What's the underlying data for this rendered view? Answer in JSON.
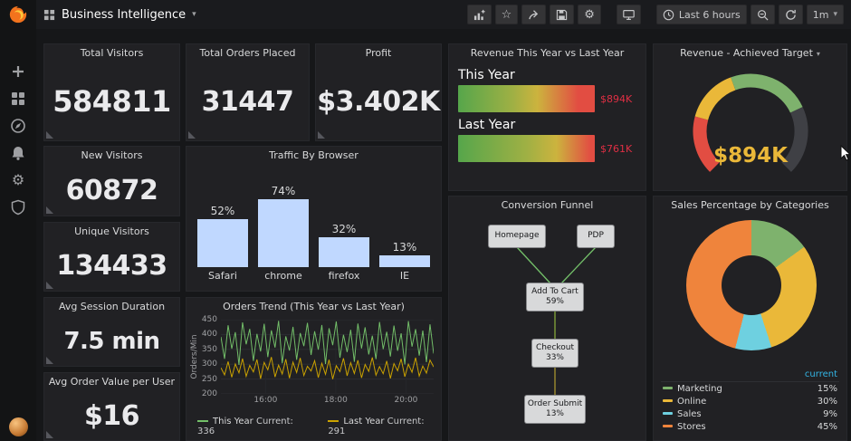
{
  "topnav": {
    "dashboard_title": "Business Intelligence",
    "time_range": "Last 6 hours",
    "refresh_interval": "1m",
    "icons": [
      "add-panel",
      "star",
      "share",
      "save",
      "settings",
      "tv-mode",
      "clock",
      "zoom-out",
      "refresh"
    ]
  },
  "sidebar": {
    "items": [
      {
        "name": "create",
        "icon": "plus-icon"
      },
      {
        "name": "dashboards",
        "icon": "grid-icon"
      },
      {
        "name": "explore",
        "icon": "compass-icon"
      },
      {
        "name": "alerting",
        "icon": "bell-icon"
      },
      {
        "name": "configuration",
        "icon": "gear-icon"
      },
      {
        "name": "server-admin",
        "icon": "shield-icon"
      }
    ]
  },
  "stats": {
    "total_visitors": {
      "title": "Total Visitors",
      "value": "584811"
    },
    "total_orders": {
      "title": "Total Orders Placed",
      "value": "31447"
    },
    "profit": {
      "title": "Profit",
      "value": "$3.402K"
    },
    "new_visitors": {
      "title": "New Visitors",
      "value": "60872"
    },
    "unique_visitors": {
      "title": "Unique Visitors",
      "value": "134433"
    },
    "avg_session_duration": {
      "title": "Avg Session Duration",
      "value": "7.5 min"
    },
    "avg_order_value": {
      "title": "Avg Order Value per User",
      "value": "$16"
    }
  },
  "funnel": {
    "title": "Conversion Funnel",
    "nodes": [
      {
        "label": "Homepage"
      },
      {
        "label": "PDP"
      },
      {
        "label": "Add To Cart",
        "pct": "59%"
      },
      {
        "label": "Checkout",
        "pct": "33%"
      },
      {
        "label": "Order Submit",
        "pct": "13%"
      }
    ]
  },
  "colors": {
    "accent_orange": "#f2731d",
    "bar_blue": "#c0d8ff",
    "green": "#73bf69",
    "yellow": "#cca300",
    "red": "#e02f44",
    "gauge_value": "#eab839",
    "legend_header_blue": "#33b5e5"
  },
  "chart_data": [
    {
      "type": "bar",
      "title": "Traffic By Browser",
      "categories": [
        "Safari",
        "chrome",
        "firefox",
        "IE"
      ],
      "values": [
        52,
        74,
        32,
        13
      ],
      "unit": "%",
      "bar_color": "#c0d8ff",
      "ylim": [
        0,
        100
      ],
      "grid": false
    },
    {
      "type": "line",
      "title": "Orders Trend (This Year vs Last Year)",
      "ylabel": "Orders/Min",
      "ylim": [
        200,
        450
      ],
      "yticks": [
        200,
        250,
        300,
        350,
        400,
        450
      ],
      "xticks": [
        "16:00",
        "18:00",
        "20:00"
      ],
      "grid": true,
      "legend_position": "bottom",
      "series": [
        {
          "name": "This Year",
          "current": 336,
          "color": "#73bf69",
          "values": [
            392,
            318,
            431,
            352,
            408,
            298,
            441,
            367,
            419,
            311,
            402,
            343,
            436,
            324,
            414,
            356,
            446,
            303,
            394,
            346,
            426,
            315,
            405,
            361,
            439,
            331,
            411,
            349,
            432,
            301,
            421,
            364,
            444,
            322,
            399,
            341,
            416,
            308,
            437,
            353,
            424,
            333,
            396,
            317,
            442,
            351,
            409,
            326,
            430,
            345,
            404,
            299,
            445,
            359,
            418,
            329,
            413,
            307,
            434,
            336
          ]
        },
        {
          "name": "Last Year",
          "current": 291,
          "color": "#cca300",
          "values": [
            288,
            264,
            309,
            256,
            301,
            271,
            319,
            259,
            296,
            274,
            316,
            251,
            306,
            281,
            324,
            257,
            297,
            267,
            317,
            253,
            307,
            272,
            321,
            262,
            293,
            277,
            312,
            255,
            303,
            266,
            315,
            250,
            295,
            275,
            320,
            261,
            305,
            269,
            313,
            254,
            299,
            276,
            323,
            263,
            292,
            268,
            311,
            252,
            302,
            278,
            318,
            258,
            300,
            273,
            322,
            260,
            294,
            270,
            314,
            291
          ]
        }
      ]
    },
    {
      "type": "bullet",
      "title": "Revenue This Year vs Last Year",
      "rows": [
        {
          "label": "This Year",
          "value": "$894K"
        },
        {
          "label": "Last Year",
          "value": "$761K"
        }
      ],
      "value_color": "#e02f44"
    },
    {
      "type": "gauge",
      "title": "Revenue - Achieved Target",
      "value": "$894K",
      "value_color": "#eab839",
      "segments": [
        {
          "color": "#e24d42",
          "sweep": 60
        },
        {
          "color": "#eab839",
          "sweep": 55
        },
        {
          "color": "#7eb26d",
          "sweep": 85
        },
        {
          "color": "#3f4045",
          "sweep": 70
        }
      ]
    },
    {
      "type": "pie",
      "title": "Sales Percentage by Categories",
      "legend_value_header": "current",
      "slices": [
        {
          "label": "Marketing",
          "value": 15,
          "color": "#7eb26d"
        },
        {
          "label": "Online",
          "value": 30,
          "color": "#eab839"
        },
        {
          "label": "Sales",
          "value": 9,
          "color": "#6ed0e0"
        },
        {
          "label": "Stores",
          "value": 45,
          "color": "#ef843c"
        }
      ]
    }
  ]
}
